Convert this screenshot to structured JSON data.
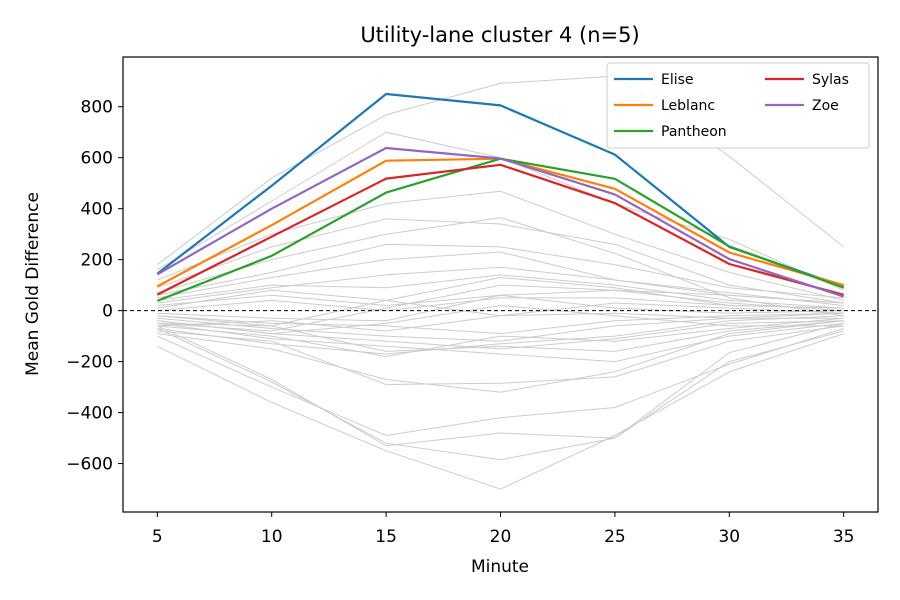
{
  "chart_data": {
    "type": "line",
    "title": "Utility-lane cluster 4  (n=5)",
    "xlabel": "Minute",
    "ylabel": "Mean Gold Difference",
    "x": [
      5,
      10,
      15,
      20,
      25,
      30,
      35
    ],
    "xlim": [
      3.5,
      36.5
    ],
    "ylim": [
      -790,
      995
    ],
    "xticks": [
      5,
      10,
      15,
      20,
      25,
      30,
      35
    ],
    "yticks": [
      -600,
      -400,
      -200,
      0,
      200,
      400,
      600,
      800
    ],
    "ytick_labels": [
      "−600",
      "−400",
      "−200",
      "0",
      "200",
      "400",
      "600",
      "800"
    ],
    "reference_line": 0,
    "legend_position": "top-right",
    "series": [
      {
        "name": "Elise",
        "color": "#1f77b4",
        "values": [
          145,
          490,
          850,
          805,
          612,
          250,
          95
        ]
      },
      {
        "name": "Leblanc",
        "color": "#ff7f0e",
        "values": [
          95,
          335,
          588,
          596,
          478,
          228,
          100
        ]
      },
      {
        "name": "Pantheon",
        "color": "#2ca02c",
        "values": [
          38,
          215,
          463,
          596,
          517,
          252,
          90
        ]
      },
      {
        "name": "Sylas",
        "color": "#d62728",
        "values": [
          63,
          290,
          518,
          572,
          422,
          183,
          62
        ]
      },
      {
        "name": "Zoe",
        "color": "#9467bd",
        "values": [
          142,
          400,
          638,
          597,
          456,
          202,
          55
        ]
      }
    ],
    "background_series": {
      "color": "#cccccc",
      "lines": [
        [
          180,
          520,
          768,
          892,
          920,
          605,
          250
        ],
        [
          160,
          430,
          700,
          600,
          420,
          280,
          80
        ],
        [
          120,
          300,
          420,
          468,
          300,
          150,
          40
        ],
        [
          90,
          250,
          360,
          340,
          260,
          100,
          30
        ],
        [
          70,
          200,
          300,
          365,
          225,
          50,
          -20
        ],
        [
          60,
          150,
          260,
          250,
          180,
          90,
          50
        ],
        [
          50,
          130,
          200,
          230,
          120,
          60,
          30
        ],
        [
          40,
          100,
          90,
          140,
          100,
          40,
          10
        ],
        [
          30,
          90,
          140,
          170,
          120,
          70,
          20
        ],
        [
          20,
          60,
          20,
          60,
          80,
          60,
          30
        ],
        [
          10,
          80,
          40,
          -20,
          30,
          10,
          -10
        ],
        [
          0,
          40,
          0,
          50,
          50,
          20,
          10
        ],
        [
          -10,
          -30,
          -40,
          60,
          10,
          -10,
          0
        ],
        [
          -20,
          -50,
          -60,
          -90,
          -40,
          -20,
          -10
        ],
        [
          -30,
          -70,
          -100,
          -120,
          -60,
          -30,
          -30
        ],
        [
          -40,
          -90,
          -120,
          -150,
          -110,
          -50,
          -40
        ],
        [
          -50,
          -60,
          -160,
          -140,
          -160,
          -80,
          -40
        ],
        [
          -60,
          -100,
          -180,
          -100,
          -120,
          -70,
          -30
        ],
        [
          -50,
          -110,
          -140,
          -170,
          -200,
          -100,
          -50
        ],
        [
          -70,
          -130,
          -170,
          -130,
          -100,
          -40,
          -20
        ],
        [
          -40,
          -90,
          -50,
          20,
          -20,
          -60,
          -60
        ],
        [
          -60,
          -40,
          -80,
          -20,
          -10,
          -30,
          -10
        ],
        [
          -80,
          -120,
          -290,
          -285,
          -260,
          -120,
          -60
        ],
        [
          -90,
          -150,
          -270,
          -320,
          -240,
          -90,
          -40
        ],
        [
          -100,
          -300,
          -490,
          -420,
          -380,
          -210,
          -70
        ],
        [
          -60,
          -270,
          -530,
          -480,
          -500,
          -165,
          -50
        ],
        [
          -140,
          -360,
          -550,
          -700,
          -490,
          -240,
          -90
        ],
        [
          -70,
          -280,
          -520,
          -585,
          -500,
          -200,
          -80
        ],
        [
          -50,
          -80,
          10,
          100,
          80,
          30,
          0
        ],
        [
          -20,
          -60,
          40,
          130,
          90,
          20,
          10
        ]
      ]
    }
  }
}
